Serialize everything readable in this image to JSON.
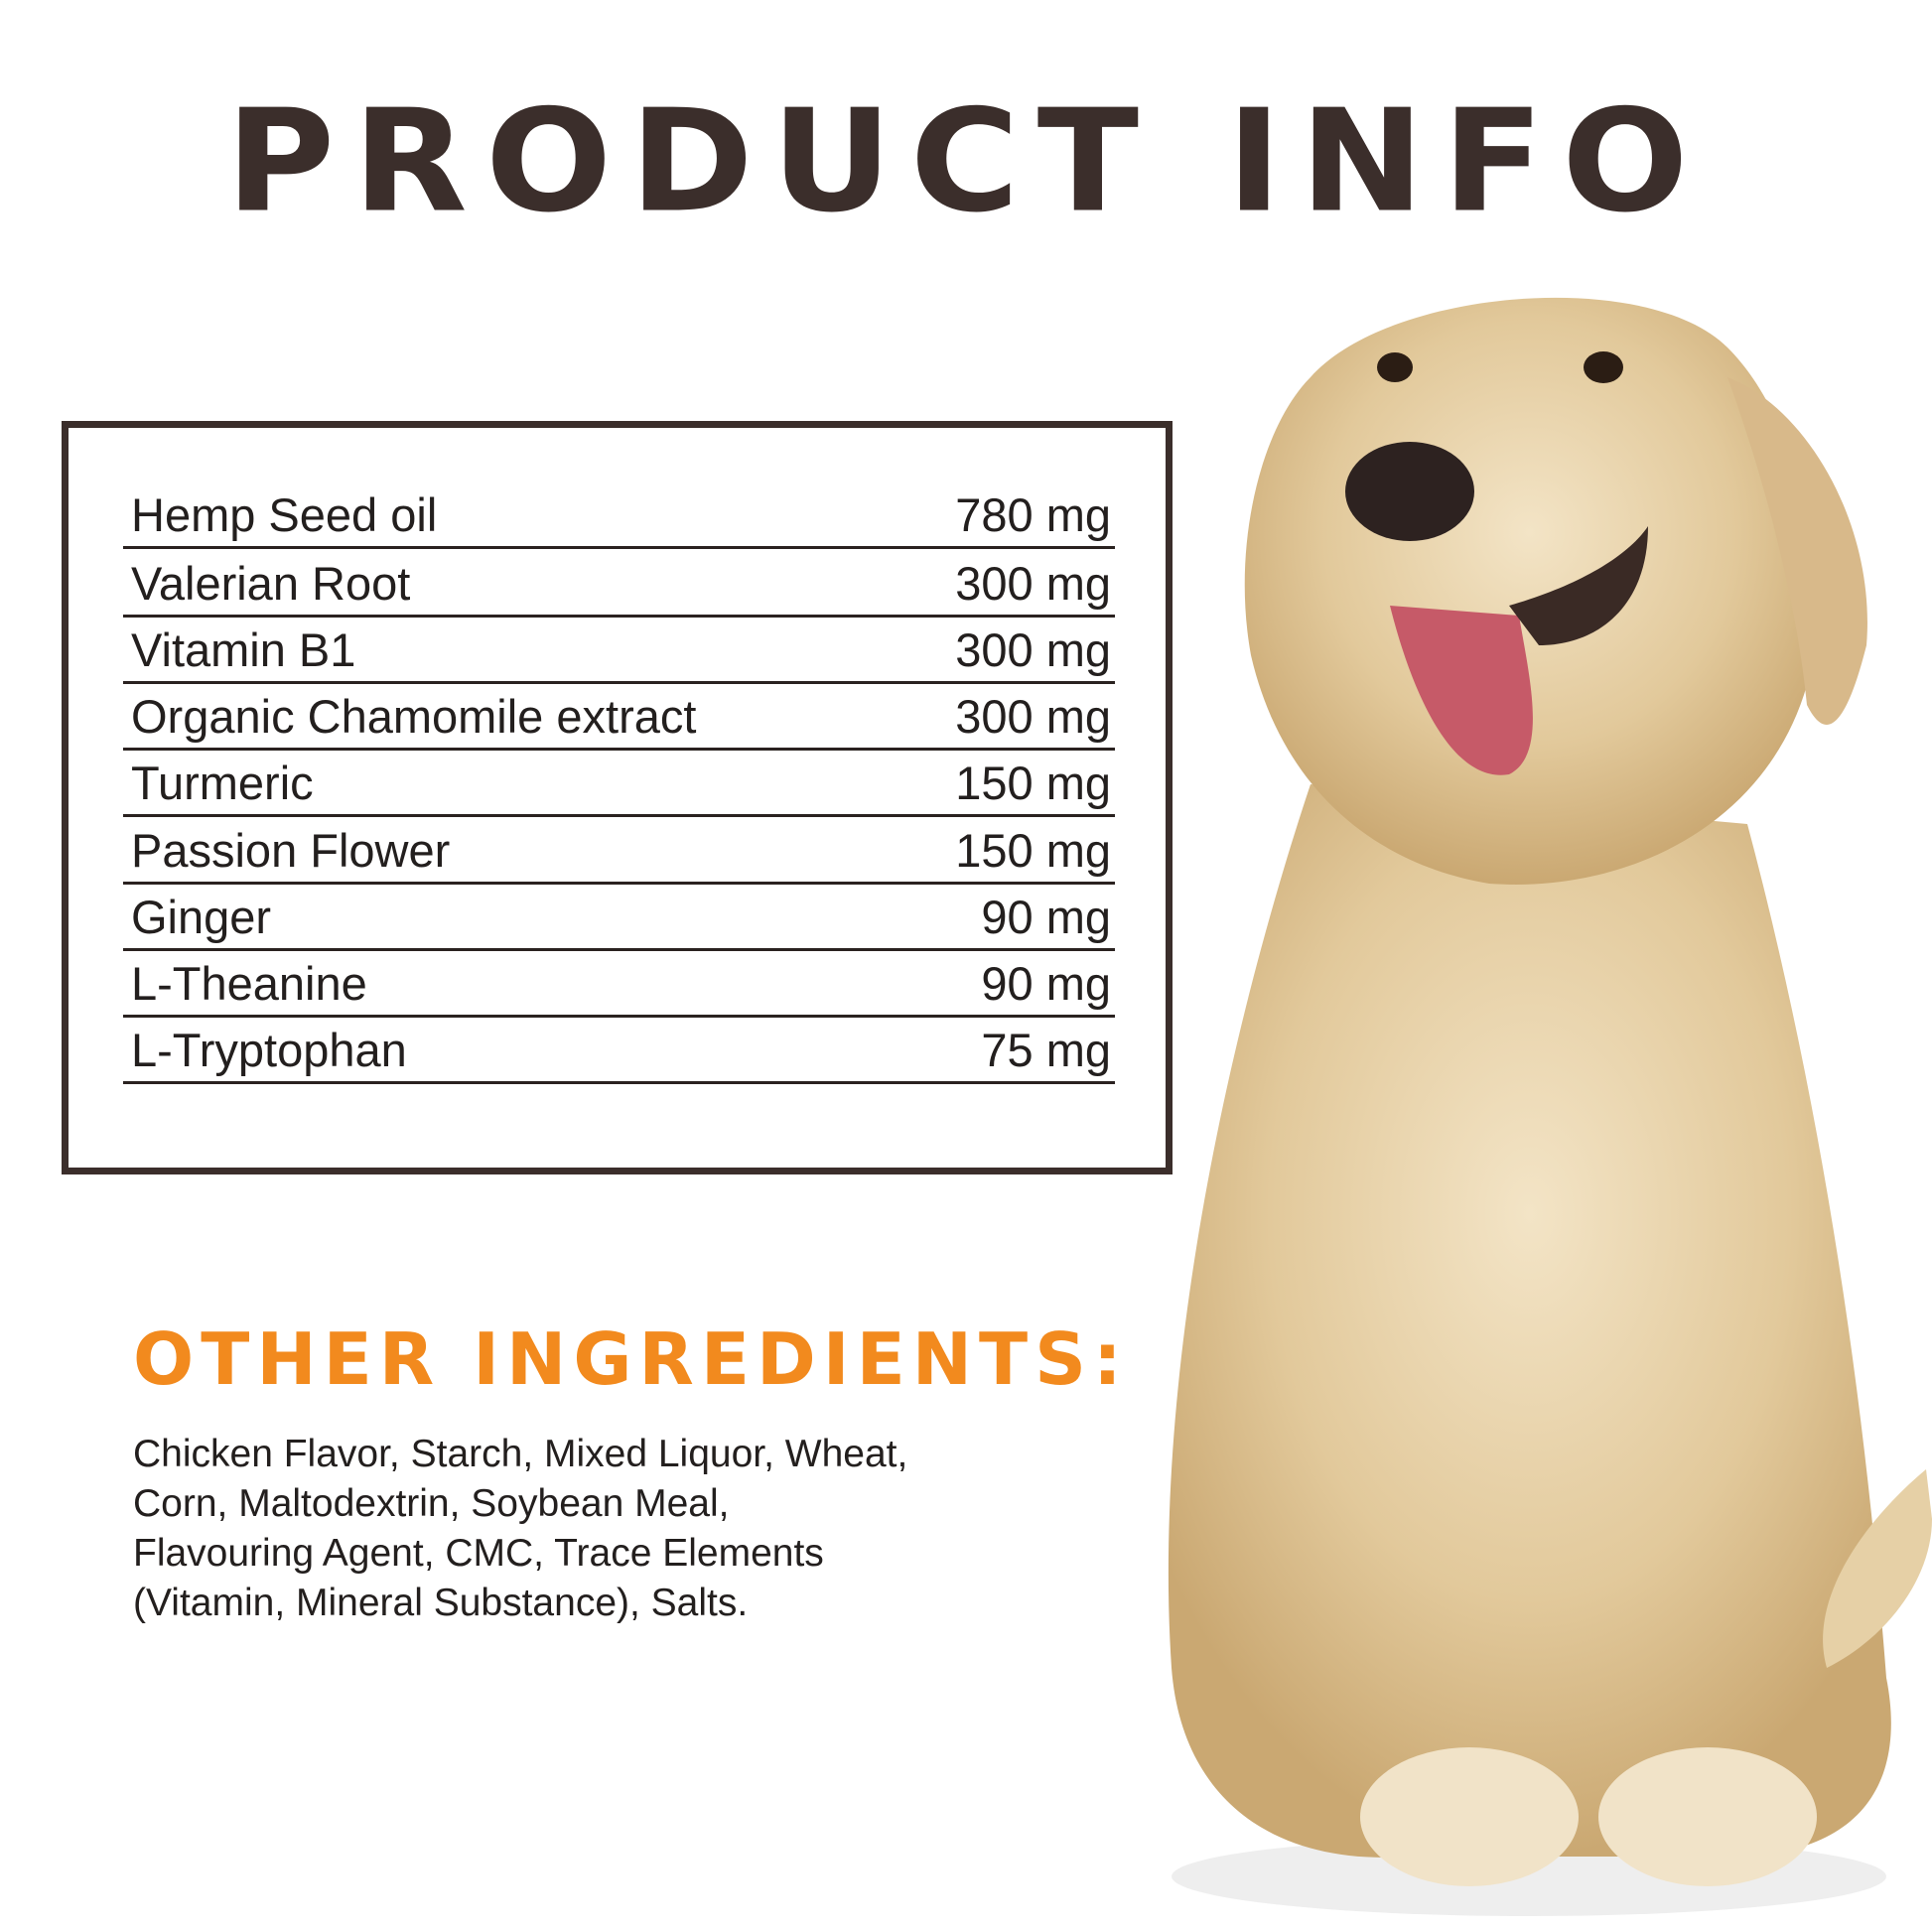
{
  "title": "PRODUCT INFO",
  "ingredients": [
    {
      "name": "Hemp Seed  oil",
      "amount": "780 mg"
    },
    {
      "name": "Valerian Root",
      "amount": "300 mg"
    },
    {
      "name": "Vitamin B1",
      "amount": "300 mg"
    },
    {
      "name": "Organic Chamomile extract",
      "amount": "300 mg"
    },
    {
      "name": "Turmeric",
      "amount": "150 mg"
    },
    {
      "name": "Passion Flower",
      "amount": "150 mg"
    },
    {
      "name": "Ginger",
      "amount": "90 mg"
    },
    {
      "name": "L-Theanine",
      "amount": "90 mg"
    },
    {
      "name": "L-Tryptophan",
      "amount": "75 mg"
    }
  ],
  "other_ingredients": {
    "heading": "OTHER INGREDIENTS:",
    "lines": [
      "Chicken Flavor, Starch, Mixed Liquor, Wheat,",
      "Corn, Maltodextrin, Soybean  Meal,",
      "Flavouring Agent, CMC, Trace Elements",
      "(Vitamin, Mineral Substance), Salts."
    ]
  },
  "colors": {
    "title": "#3b2e2b",
    "accent": "#f28a1e",
    "text": "#231f1e"
  },
  "image": "golden-retriever-dog-photo"
}
